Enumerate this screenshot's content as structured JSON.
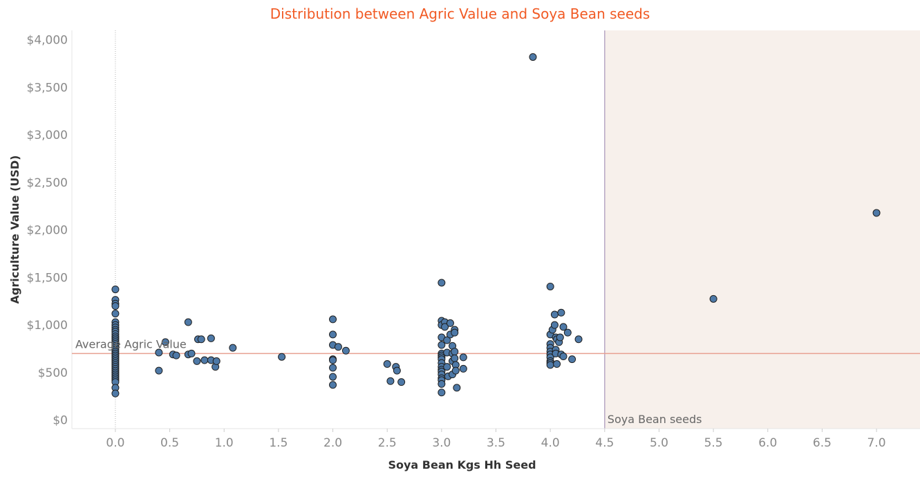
{
  "title": "Distribution between Agric Value and Soya Bean seeds",
  "colors": {
    "title": "#f15a24",
    "point_fill": "#4e79a7",
    "point_stroke": "#1f1f1f",
    "average_line": "#e8a091",
    "band_fill": "#f7f0eb",
    "band_line": "#b7a7c4",
    "zero_line": "#b0b0b0"
  },
  "chart_data": {
    "type": "scatter",
    "title": "Distribution between Agric Value and Soya Bean seeds",
    "xlabel": "Soya Bean Kgs Hh Seed",
    "ylabel": "Agriculture Value (USD)",
    "xlim": [
      -0.4,
      7.4
    ],
    "ylim": [
      -90,
      4100
    ],
    "x_ticks": [
      {
        "value": 0,
        "label": "0.0"
      },
      {
        "value": 0.5,
        "label": "0.5"
      },
      {
        "value": 1,
        "label": "1.0"
      },
      {
        "value": 1.5,
        "label": "1.5"
      },
      {
        "value": 2,
        "label": "2.0"
      },
      {
        "value": 2.5,
        "label": "2.5"
      },
      {
        "value": 3,
        "label": "3.0"
      },
      {
        "value": 3.5,
        "label": "3.5"
      },
      {
        "value": 4,
        "label": "4.0"
      },
      {
        "value": 4.5,
        "label": "4.5"
      },
      {
        "value": 5,
        "label": "5.0"
      },
      {
        "value": 5.5,
        "label": "5.5"
      },
      {
        "value": 6,
        "label": "6.0"
      },
      {
        "value": 6.5,
        "label": "6.5"
      },
      {
        "value": 7,
        "label": "7.0"
      }
    ],
    "y_ticks": [
      {
        "value": 0,
        "label": "$0"
      },
      {
        "value": 500,
        "label": "$500"
      },
      {
        "value": 1000,
        "label": "$1,000"
      },
      {
        "value": 1500,
        "label": "$1,500"
      },
      {
        "value": 2000,
        "label": "$2,000"
      },
      {
        "value": 2500,
        "label": "$2,500"
      },
      {
        "value": 3000,
        "label": "$3,000"
      },
      {
        "value": 3500,
        "label": "$3,500"
      },
      {
        "value": 4000,
        "label": "$4,000"
      }
    ],
    "grid": false,
    "reference_line": {
      "label": "Average Agric Value",
      "value": 700
    },
    "reference_band": {
      "label": "Soya Bean seeds",
      "from": 4.5,
      "to": 7.4
    },
    "points": [
      [
        0,
        1375
      ],
      [
        0,
        1265
      ],
      [
        0,
        1225
      ],
      [
        0,
        1200
      ],
      [
        0,
        1120
      ],
      [
        0,
        1030
      ],
      [
        0,
        1000
      ],
      [
        0,
        975
      ],
      [
        0,
        950
      ],
      [
        0,
        930
      ],
      [
        0,
        905
      ],
      [
        0,
        880
      ],
      [
        0,
        860
      ],
      [
        0,
        840
      ],
      [
        0,
        820
      ],
      [
        0,
        800
      ],
      [
        0,
        780
      ],
      [
        0,
        760
      ],
      [
        0,
        740
      ],
      [
        0,
        720
      ],
      [
        0,
        700
      ],
      [
        0,
        680
      ],
      [
        0,
        660
      ],
      [
        0,
        640
      ],
      [
        0,
        620
      ],
      [
        0,
        600
      ],
      [
        0,
        580
      ],
      [
        0,
        560
      ],
      [
        0,
        540
      ],
      [
        0,
        520
      ],
      [
        0,
        500
      ],
      [
        0,
        480
      ],
      [
        0,
        460
      ],
      [
        0,
        440
      ],
      [
        0,
        420
      ],
      [
        0,
        400
      ],
      [
        0,
        340
      ],
      [
        0,
        280
      ],
      [
        0.4,
        710
      ],
      [
        0.4,
        520
      ],
      [
        0.46,
        820
      ],
      [
        0.53,
        690
      ],
      [
        0.56,
        680
      ],
      [
        0.67,
        1030
      ],
      [
        0.67,
        690
      ],
      [
        0.7,
        700
      ],
      [
        0.75,
        620
      ],
      [
        0.76,
        850
      ],
      [
        0.79,
        850
      ],
      [
        0.82,
        630
      ],
      [
        0.88,
        860
      ],
      [
        0.88,
        630
      ],
      [
        0.92,
        560
      ],
      [
        0.93,
        620
      ],
      [
        1.08,
        760
      ],
      [
        1.53,
        665
      ],
      [
        2,
        1060
      ],
      [
        2,
        900
      ],
      [
        2,
        790
      ],
      [
        2,
        640
      ],
      [
        2,
        630
      ],
      [
        2,
        550
      ],
      [
        2,
        455
      ],
      [
        2,
        370
      ],
      [
        2.05,
        770
      ],
      [
        2.12,
        730
      ],
      [
        2.5,
        590
      ],
      [
        2.53,
        410
      ],
      [
        2.58,
        560
      ],
      [
        2.59,
        520
      ],
      [
        2.63,
        400
      ],
      [
        3,
        1445
      ],
      [
        3,
        1045
      ],
      [
        3,
        1000
      ],
      [
        3,
        870
      ],
      [
        3,
        790
      ],
      [
        3,
        700
      ],
      [
        3,
        680
      ],
      [
        3,
        660
      ],
      [
        3,
        640
      ],
      [
        3,
        600
      ],
      [
        3,
        560
      ],
      [
        3,
        530
      ],
      [
        3,
        510
      ],
      [
        3,
        480
      ],
      [
        3,
        440
      ],
      [
        3,
        420
      ],
      [
        3,
        380
      ],
      [
        3,
        290
      ],
      [
        3.03,
        1030
      ],
      [
        3.03,
        980
      ],
      [
        3.05,
        840
      ],
      [
        3.05,
        710
      ],
      [
        3.05,
        560
      ],
      [
        3.06,
        460
      ],
      [
        3.08,
        1020
      ],
      [
        3.08,
        900
      ],
      [
        3.1,
        780
      ],
      [
        3.1,
        700
      ],
      [
        3.1,
        620
      ],
      [
        3.1,
        480
      ],
      [
        3.12,
        950
      ],
      [
        3.12,
        920
      ],
      [
        3.12,
        720
      ],
      [
        3.12,
        650
      ],
      [
        3.13,
        580
      ],
      [
        3.13,
        520
      ],
      [
        3.14,
        340
      ],
      [
        3.2,
        660
      ],
      [
        3.2,
        540
      ],
      [
        3.84,
        3820
      ],
      [
        4,
        1405
      ],
      [
        4,
        800
      ],
      [
        4,
        760
      ],
      [
        4,
        720
      ],
      [
        4,
        690
      ],
      [
        4,
        660
      ],
      [
        4,
        620
      ],
      [
        4,
        600
      ],
      [
        4,
        580
      ],
      [
        4,
        900
      ],
      [
        4.02,
        950
      ],
      [
        4.04,
        1110
      ],
      [
        4.04,
        1000
      ],
      [
        4.05,
        870
      ],
      [
        4.05,
        740
      ],
      [
        4.05,
        700
      ],
      [
        4.06,
        590
      ],
      [
        4.06,
        850
      ],
      [
        4.08,
        820
      ],
      [
        4.09,
        870
      ],
      [
        4.1,
        1130
      ],
      [
        4.1,
        690
      ],
      [
        4.12,
        980
      ],
      [
        4.12,
        670
      ],
      [
        4.16,
        920
      ],
      [
        4.2,
        640
      ],
      [
        4.26,
        850
      ],
      [
        5.5,
        1275
      ],
      [
        7,
        2180
      ]
    ]
  }
}
